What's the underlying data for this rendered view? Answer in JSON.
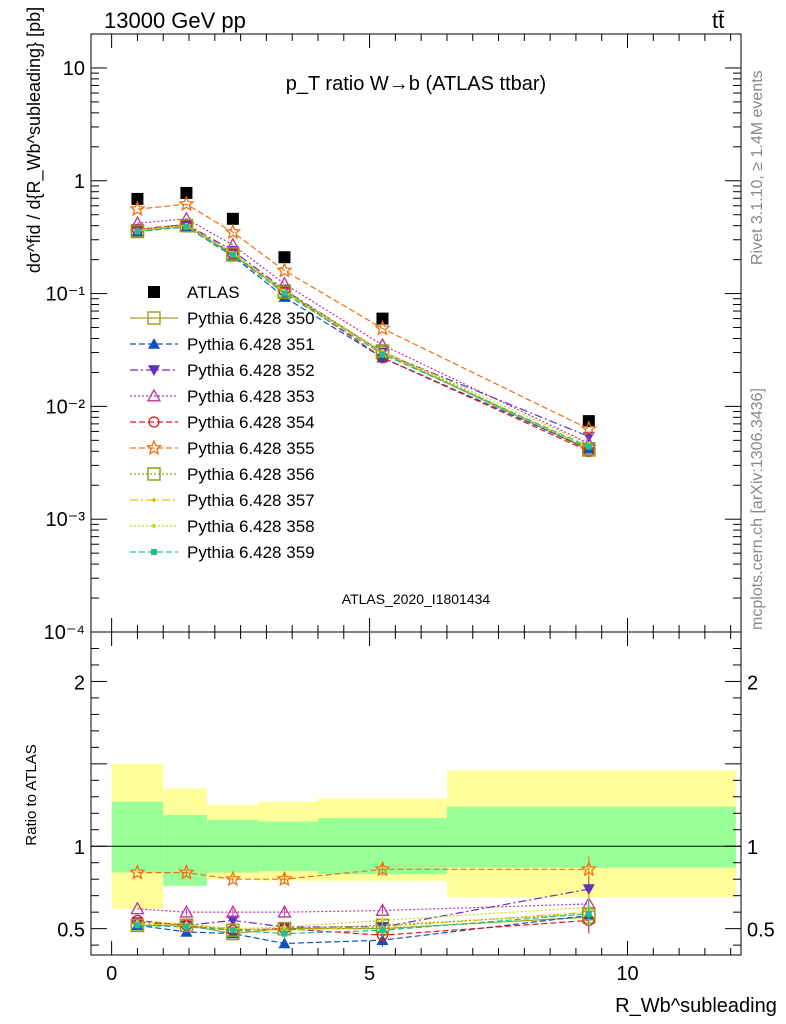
{
  "header": {
    "left": "13000 GeV pp",
    "right": "tt̄"
  },
  "side_text": {
    "rivet": "Rivet 3.1.10, ≥ 1.4M events",
    "mcplots": "mcplots.cern.ch [arXiv:1306.3436]"
  },
  "colors": {
    "band_inner": "#99ff99",
    "band_outer": "#ffff99"
  },
  "chart_data": [
    {
      "type": "scatter",
      "title": "p_T ratio W→b (ATLAS ttbar)",
      "ylabel": "dσ^fid / d{R_Wb^subleading} [pb]",
      "yscale": "log",
      "ylim": [
        0.0001,
        20
      ],
      "xlim": [
        -0.4,
        12.2
      ],
      "y_ticks": [
        "10⁻⁴",
        "10⁻³",
        "10⁻²",
        "10⁻¹",
        "1",
        "10"
      ],
      "analysis_label": "ATLAS_2020_I1801434",
      "x": [
        0.5,
        1.45,
        2.35,
        3.35,
        5.25,
        9.25
      ],
      "series": [
        {
          "name": "ATLAS",
          "color": "#000000",
          "marker": "square-filled",
          "dash": "none",
          "values": [
            0.69,
            0.78,
            0.46,
            0.21,
            0.06,
            0.0074
          ]
        },
        {
          "name": "Pythia 6.428 350",
          "color": "#a0a030",
          "marker": "square-open",
          "dash": "solid",
          "values": [
            0.36,
            0.4,
            0.22,
            0.105,
            0.03,
            0.0041
          ]
        },
        {
          "name": "Pythia 6.428 351",
          "color": "#1050c0",
          "marker": "triangle-up-filled",
          "dash": "dashed",
          "values": [
            0.355,
            0.39,
            0.215,
            0.093,
            0.027,
            0.0042
          ]
        },
        {
          "name": "Pythia 6.428 352",
          "color": "#6030c0",
          "marker": "triangle-down-filled",
          "dash": "dashdot",
          "values": [
            0.37,
            0.41,
            0.24,
            0.108,
            0.03,
            0.0054
          ]
        },
        {
          "name": "Pythia 6.428 353",
          "color": "#c030a0",
          "marker": "triangle-up-open",
          "dash": "dotted",
          "values": [
            0.42,
            0.46,
            0.27,
            0.122,
            0.035,
            0.0047
          ]
        },
        {
          "name": "Pythia 6.428 354",
          "color": "#e01818",
          "marker": "circle-open",
          "dash": "dashed",
          "values": [
            0.37,
            0.41,
            0.225,
            0.105,
            0.027,
            0.004
          ]
        },
        {
          "name": "Pythia 6.428 355",
          "color": "#f07010",
          "marker": "star",
          "dash": "dashed",
          "values": [
            0.56,
            0.62,
            0.35,
            0.16,
            0.049,
            0.0063
          ]
        },
        {
          "name": "Pythia 6.428 356",
          "color": "#90a010",
          "marker": "square-open",
          "dash": "dotted",
          "values": [
            0.355,
            0.4,
            0.225,
            0.103,
            0.031,
            0.0042
          ]
        },
        {
          "name": "Pythia 6.428 357",
          "color": "#e0c010",
          "marker": "dot",
          "dash": "dashdot",
          "values": [
            0.36,
            0.4,
            0.225,
            0.103,
            0.03,
            0.0043
          ]
        },
        {
          "name": "Pythia 6.428 358",
          "color": "#c8d820",
          "marker": "dot",
          "dash": "dotted",
          "values": [
            0.365,
            0.405,
            0.23,
            0.106,
            0.031,
            0.0046
          ]
        },
        {
          "name": "Pythia 6.428 359",
          "color": "#20c090",
          "marker": "square-filled-small",
          "dash": "dashed",
          "values": [
            0.355,
            0.39,
            0.22,
            0.1,
            0.029,
            0.0044
          ]
        }
      ]
    },
    {
      "type": "scatter",
      "ylabel": "Ratio to ATLAS",
      "xlabel": "R_Wb^subleading",
      "ylim": [
        0.34,
        2.3
      ],
      "xlim": [
        -0.4,
        12.2
      ],
      "x_ticks": [
        "0",
        "5",
        "10"
      ],
      "y_ticks": [
        "0.5",
        "1",
        "2"
      ],
      "x": [
        0.5,
        1.45,
        2.35,
        3.35,
        5.25,
        9.25
      ],
      "bins": [
        [
          0,
          1
        ],
        [
          1,
          1.85
        ],
        [
          1.85,
          2.85
        ],
        [
          2.85,
          4
        ],
        [
          4,
          6.5
        ],
        [
          6.5,
          12.1
        ]
      ],
      "band_inner": [
        [
          0.84,
          1.27
        ],
        [
          0.76,
          1.19
        ],
        [
          0.84,
          1.16
        ],
        [
          0.85,
          1.15
        ],
        [
          0.83,
          1.17
        ],
        [
          0.87,
          1.24
        ]
      ],
      "band_outer": [
        [
          0.62,
          1.5
        ],
        [
          0.76,
          1.35
        ],
        [
          0.8,
          1.25
        ],
        [
          0.79,
          1.27
        ],
        [
          0.79,
          1.29
        ],
        [
          0.69,
          1.46
        ]
      ],
      "series": [
        {
          "name": "Pythia 6.428 350",
          "values": [
            0.52,
            0.52,
            0.47,
            0.5,
            0.5,
            0.57
          ]
        },
        {
          "name": "Pythia 6.428 351",
          "values": [
            0.52,
            0.48,
            0.47,
            0.41,
            0.43,
            0.58
          ]
        },
        {
          "name": "Pythia 6.428 352",
          "values": [
            0.54,
            0.52,
            0.55,
            0.51,
            0.51,
            0.74
          ]
        },
        {
          "name": "Pythia 6.428 353",
          "values": [
            0.62,
            0.6,
            0.6,
            0.6,
            0.61,
            0.65
          ]
        },
        {
          "name": "Pythia 6.428 354",
          "values": [
            0.55,
            0.52,
            0.49,
            0.5,
            0.46,
            0.55
          ]
        },
        {
          "name": "Pythia 6.428 355",
          "values": [
            0.84,
            0.84,
            0.8,
            0.8,
            0.86,
            0.86
          ]
        },
        {
          "name": "Pythia 6.428 356",
          "values": [
            0.52,
            0.52,
            0.49,
            0.5,
            0.52,
            0.59
          ]
        },
        {
          "name": "Pythia 6.428 357",
          "values": [
            0.53,
            0.52,
            0.5,
            0.49,
            0.51,
            0.6
          ]
        },
        {
          "name": "Pythia 6.428 358",
          "values": [
            0.54,
            0.53,
            0.5,
            0.51,
            0.55,
            0.63
          ]
        },
        {
          "name": "Pythia 6.428 359",
          "values": [
            0.52,
            0.51,
            0.49,
            0.47,
            0.49,
            0.59
          ]
        }
      ],
      "ratio_errors": [
        0,
        0.02,
        0.02,
        0.03,
        0.04,
        0.08
      ]
    }
  ]
}
